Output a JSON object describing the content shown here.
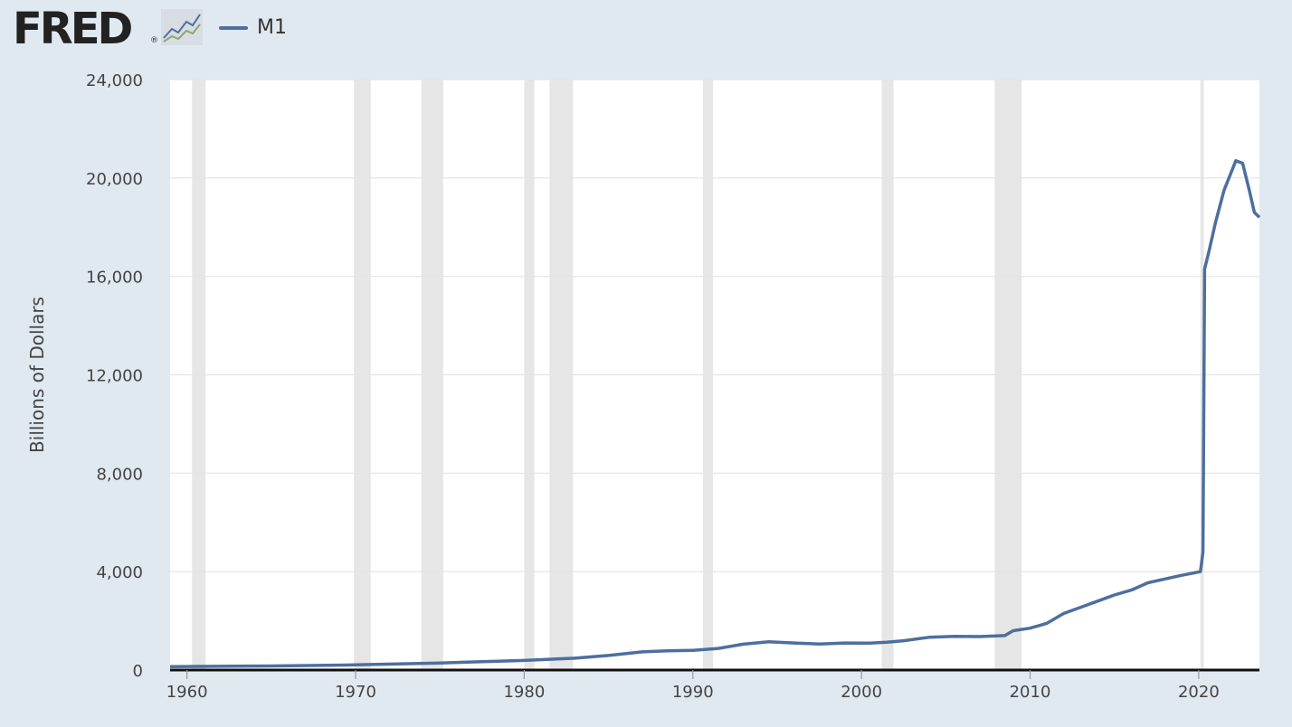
{
  "logo": {
    "text": "FRED",
    "reg": "®"
  },
  "colors": {
    "background": "#e1e9f0",
    "plot": "#ffffff",
    "series": "#4e6e9f",
    "recession": "#e6e6e6",
    "grid": "#e4e4e4"
  },
  "chart_data": {
    "type": "line",
    "ylabel": "Billions of Dollars",
    "xlim": [
      1959,
      2023.6
    ],
    "ylim": [
      0,
      24000
    ],
    "yticks": [
      0,
      4000,
      8000,
      12000,
      16000,
      20000,
      24000
    ],
    "ytick_labels": [
      "0",
      "4,000",
      "8,000",
      "12,000",
      "16,000",
      "20,000",
      "24,000"
    ],
    "xticks": [
      1960,
      1970,
      1980,
      1990,
      2000,
      2010,
      2020
    ],
    "xtick_labels": [
      "1960",
      "1970",
      "1980",
      "1990",
      "2000",
      "2010",
      "2020"
    ],
    "grid": true,
    "legend": "top-left",
    "recessions": [
      [
        1960.3,
        1961.1
      ],
      [
        1969.9,
        1970.9
      ],
      [
        1973.9,
        1975.2
      ],
      [
        1980.0,
        1980.6
      ],
      [
        1981.5,
        1982.9
      ],
      [
        1990.6,
        1991.2
      ],
      [
        2001.2,
        2001.9
      ],
      [
        2007.9,
        2009.5
      ],
      [
        2020.1,
        2020.3
      ]
    ],
    "series": [
      {
        "name": "M1",
        "color": "#4e6e9f",
        "points": [
          [
            1959.0,
            140
          ],
          [
            1965,
            165
          ],
          [
            1970,
            210
          ],
          [
            1975,
            285
          ],
          [
            1980,
            390
          ],
          [
            1983,
            480
          ],
          [
            1985,
            590
          ],
          [
            1987,
            740
          ],
          [
            1988.5,
            780
          ],
          [
            1990,
            800
          ],
          [
            1991.5,
            880
          ],
          [
            1993,
            1050
          ],
          [
            1994.5,
            1150
          ],
          [
            1996,
            1100
          ],
          [
            1997.5,
            1060
          ],
          [
            1999,
            1100
          ],
          [
            2000.5,
            1090
          ],
          [
            2001.5,
            1130
          ],
          [
            2002.5,
            1190
          ],
          [
            2004,
            1330
          ],
          [
            2005.5,
            1370
          ],
          [
            2007,
            1360
          ],
          [
            2008.5,
            1400
          ],
          [
            2009,
            1600
          ],
          [
            2010,
            1700
          ],
          [
            2011,
            1900
          ],
          [
            2012,
            2300
          ],
          [
            2013,
            2550
          ],
          [
            2014,
            2800
          ],
          [
            2015,
            3050
          ],
          [
            2016,
            3250
          ],
          [
            2017,
            3550
          ],
          [
            2018,
            3700
          ],
          [
            2019,
            3850
          ],
          [
            2020.1,
            4000
          ],
          [
            2020.25,
            4800
          ],
          [
            2020.35,
            16300
          ],
          [
            2020.6,
            17000
          ],
          [
            2021,
            18200
          ],
          [
            2021.5,
            19500
          ],
          [
            2022.2,
            20700
          ],
          [
            2022.6,
            20600
          ],
          [
            2023.0,
            19500
          ],
          [
            2023.3,
            18600
          ],
          [
            2023.6,
            18400
          ]
        ]
      }
    ]
  }
}
